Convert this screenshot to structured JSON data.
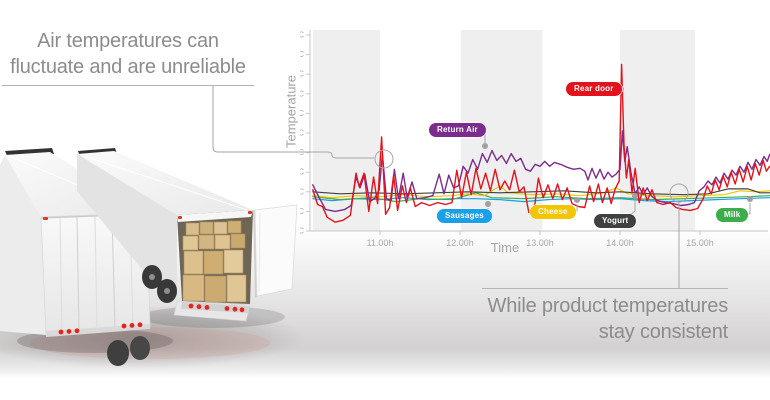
{
  "callouts": {
    "left": {
      "line1": "Air temperatures can",
      "line2": "fluctuate and are unreliable"
    },
    "right": {
      "line1": "While product temperatures",
      "line2": "stay consistent"
    }
  },
  "illustration": {
    "subject": "two white refrigerated semi-trailers seen from the rear, right trailer doors open showing stacked cardboard boxes"
  },
  "chart_data": {
    "type": "line",
    "xlabel": "Time",
    "ylabel": "Temperature",
    "y_unit": "°C",
    "x_unit": "hour of day",
    "xlim": [
      10.16,
      15.87
    ],
    "ylim": [
      0,
      20
    ],
    "x_tick_hours": [
      11,
      12,
      13,
      14,
      15
    ],
    "x_tick_labels": [
      "11.00h",
      "12.00h",
      "13.00h",
      "14.00h",
      "15.00h"
    ],
    "y_tick_labels": [
      "0°C",
      "2°C",
      "4°C",
      "6°C",
      "8°C",
      "10°C",
      "12°C",
      "14°C",
      "16°C",
      "18°C",
      "20°C"
    ],
    "shaded_bands": [
      [
        10.16,
        11.0
      ],
      [
        12.01,
        13.03
      ],
      [
        14.0,
        14.94
      ]
    ],
    "band_color": "#efefef",
    "axis_color": "#c6c6c6",
    "tick_label_color": "#a8a8a8",
    "legend_position": "floating badges beside lines",
    "grid": false,
    "annotations": [
      {
        "shape": "circle",
        "at_hour": 11.05,
        "at_value": 8.5,
        "links_to": "left callout"
      },
      {
        "shape": "circle",
        "at_hour": 14.74,
        "at_value": 3.5,
        "links_to": "right callout"
      }
    ],
    "series": [
      {
        "name": "Sausages",
        "color": "#1a9fe8",
        "width": 1.2,
        "points": [
          [
            10.16,
            3.3
          ],
          [
            10.4,
            3.1
          ],
          [
            10.7,
            3.3
          ],
          [
            11.0,
            3.2
          ],
          [
            11.3,
            3.4
          ],
          [
            11.6,
            3.2
          ],
          [
            11.9,
            3.3
          ],
          [
            12.2,
            3.3
          ],
          [
            12.5,
            3.2
          ],
          [
            12.8,
            3.0
          ],
          [
            13.1,
            3.2
          ],
          [
            13.4,
            3.3
          ],
          [
            13.7,
            3.2
          ],
          [
            14.0,
            3.3
          ],
          [
            14.3,
            3.1
          ],
          [
            14.6,
            3.0
          ],
          [
            14.9,
            3.1
          ],
          [
            15.2,
            3.2
          ],
          [
            15.5,
            3.3
          ],
          [
            15.87,
            3.4
          ]
        ]
      },
      {
        "name": "Milk",
        "color": "#3bad4a",
        "width": 1.2,
        "points": [
          [
            10.16,
            3.5
          ],
          [
            10.5,
            3.2
          ],
          [
            10.9,
            3.4
          ],
          [
            11.2,
            3.0
          ],
          [
            11.5,
            3.3
          ],
          [
            11.9,
            3.2
          ],
          [
            12.2,
            3.9
          ],
          [
            12.4,
            3.4
          ],
          [
            12.8,
            3.3
          ],
          [
            13.2,
            3.5
          ],
          [
            13.6,
            3.3
          ],
          [
            14.0,
            3.4
          ],
          [
            14.4,
            3.2
          ],
          [
            14.8,
            3.3
          ],
          [
            15.2,
            3.4
          ],
          [
            15.6,
            3.5
          ],
          [
            15.87,
            3.6
          ]
        ]
      },
      {
        "name": "Cheese",
        "color": "#f2c500",
        "width": 1.2,
        "points": [
          [
            10.16,
            3.6
          ],
          [
            10.4,
            3.4
          ],
          [
            10.7,
            3.6
          ],
          [
            11.0,
            3.5
          ],
          [
            11.3,
            3.7
          ],
          [
            11.6,
            3.5
          ],
          [
            11.9,
            3.6
          ],
          [
            12.1,
            3.8
          ],
          [
            12.3,
            3.6
          ],
          [
            12.5,
            4.6
          ],
          [
            12.6,
            3.9
          ],
          [
            12.9,
            3.7
          ],
          [
            13.2,
            3.8
          ],
          [
            13.5,
            3.6
          ],
          [
            13.8,
            3.9
          ],
          [
            13.95,
            4.4
          ],
          [
            14.1,
            3.8
          ],
          [
            14.4,
            3.6
          ],
          [
            14.7,
            3.5
          ],
          [
            15.0,
            3.6
          ],
          [
            15.3,
            3.7
          ],
          [
            15.5,
            4.1
          ],
          [
            15.7,
            4.0
          ],
          [
            15.87,
            4.1
          ]
        ]
      },
      {
        "name": "Yogurt",
        "color": "#3f4040",
        "width": 1.2,
        "points": [
          [
            10.16,
            4.0
          ],
          [
            10.5,
            3.8
          ],
          [
            10.9,
            3.9
          ],
          [
            11.3,
            3.8
          ],
          [
            11.7,
            3.9
          ],
          [
            12.1,
            4.0
          ],
          [
            12.5,
            3.9
          ],
          [
            12.9,
            4.0
          ],
          [
            13.3,
            4.1
          ],
          [
            13.7,
            3.9
          ],
          [
            14.0,
            4.0
          ],
          [
            14.4,
            3.8
          ],
          [
            14.8,
            3.7
          ],
          [
            15.1,
            3.8
          ],
          [
            15.35,
            4.3
          ],
          [
            15.6,
            4.3
          ],
          [
            15.75,
            3.9
          ],
          [
            15.87,
            3.9
          ]
        ]
      },
      {
        "name": "Return Air",
        "color": "#7c2c8d",
        "width": 1.4,
        "points": [
          [
            10.16,
            4.7
          ],
          [
            10.24,
            3.4
          ],
          [
            10.32,
            2.2
          ],
          [
            10.44,
            2.0
          ],
          [
            10.56,
            2.2
          ],
          [
            10.64,
            2.6
          ],
          [
            10.7,
            5.5
          ],
          [
            10.75,
            4.4
          ],
          [
            10.81,
            5.8
          ],
          [
            10.87,
            3.0
          ],
          [
            10.93,
            3.3
          ],
          [
            10.99,
            4.2
          ],
          [
            11.03,
            7.8
          ],
          [
            11.08,
            3.3
          ],
          [
            11.14,
            3.1
          ],
          [
            11.18,
            6.3
          ],
          [
            11.23,
            3.3
          ],
          [
            11.29,
            5.9
          ],
          [
            11.34,
            3.4
          ],
          [
            11.4,
            5.0
          ],
          [
            11.46,
            3.3
          ],
          [
            11.56,
            3.4
          ],
          [
            11.66,
            3.6
          ],
          [
            11.74,
            5.8
          ],
          [
            11.8,
            3.8
          ],
          [
            11.86,
            5.7
          ],
          [
            11.92,
            4.4
          ],
          [
            11.98,
            4.6
          ],
          [
            12.04,
            6.6
          ],
          [
            12.1,
            5.9
          ],
          [
            12.16,
            7.3
          ],
          [
            12.22,
            6.3
          ],
          [
            12.28,
            7.9
          ],
          [
            12.34,
            7.0
          ],
          [
            12.4,
            8.2
          ],
          [
            12.46,
            7.2
          ],
          [
            12.52,
            7.7
          ],
          [
            12.58,
            6.9
          ],
          [
            12.64,
            7.9
          ],
          [
            12.7,
            7.1
          ],
          [
            12.76,
            7.4
          ],
          [
            12.82,
            6.3
          ],
          [
            12.88,
            6.1
          ],
          [
            12.94,
            6.8
          ],
          [
            13.0,
            6.6
          ],
          [
            13.06,
            7.1
          ],
          [
            13.12,
            6.6
          ],
          [
            13.18,
            7.0
          ],
          [
            13.26,
            6.8
          ],
          [
            13.34,
            6.5
          ],
          [
            13.42,
            6.3
          ],
          [
            13.5,
            6.4
          ],
          [
            13.56,
            6.1
          ],
          [
            13.6,
            5.2
          ],
          [
            13.65,
            6.4
          ],
          [
            13.7,
            5.4
          ],
          [
            13.75,
            6.3
          ],
          [
            13.8,
            5.3
          ],
          [
            13.85,
            6.0
          ],
          [
            13.9,
            5.5
          ],
          [
            13.95,
            5.8
          ],
          [
            14.0,
            6.3
          ],
          [
            14.03,
            10.2
          ],
          [
            14.06,
            7.1
          ],
          [
            14.09,
            8.6
          ],
          [
            14.14,
            5.8
          ],
          [
            14.19,
            3.8
          ],
          [
            14.24,
            4.5
          ],
          [
            14.29,
            3.7
          ],
          [
            14.34,
            4.4
          ],
          [
            14.4,
            3.5
          ],
          [
            14.47,
            3.1
          ],
          [
            14.56,
            2.9
          ],
          [
            14.66,
            2.8
          ],
          [
            14.76,
            2.6
          ],
          [
            14.86,
            2.7
          ],
          [
            14.93,
            2.9
          ],
          [
            14.99,
            4.1
          ],
          [
            15.05,
            4.5
          ],
          [
            15.1,
            5.1
          ],
          [
            15.15,
            4.7
          ],
          [
            15.2,
            5.5
          ],
          [
            15.25,
            4.9
          ],
          [
            15.3,
            5.9
          ],
          [
            15.35,
            5.3
          ],
          [
            15.4,
            6.2
          ],
          [
            15.45,
            5.7
          ],
          [
            15.5,
            6.6
          ],
          [
            15.55,
            6.0
          ],
          [
            15.6,
            7.0
          ],
          [
            15.65,
            6.3
          ],
          [
            15.7,
            7.3
          ],
          [
            15.75,
            6.7
          ],
          [
            15.8,
            7.6
          ],
          [
            15.84,
            7.1
          ],
          [
            15.87,
            7.8
          ]
        ]
      },
      {
        "name": "Rear door",
        "color": "#e1131c",
        "width": 1.4,
        "points": [
          [
            10.16,
            4.2
          ],
          [
            10.22,
            2.7
          ],
          [
            10.28,
            2.5
          ],
          [
            10.34,
            1.4
          ],
          [
            10.44,
            0.9
          ],
          [
            10.54,
            1.1
          ],
          [
            10.63,
            1.6
          ],
          [
            10.7,
            5.9
          ],
          [
            10.74,
            4.5
          ],
          [
            10.8,
            5.9
          ],
          [
            10.86,
            2.0
          ],
          [
            10.92,
            5.5
          ],
          [
            10.97,
            2.8
          ],
          [
            11.02,
            9.6
          ],
          [
            11.07,
            1.7
          ],
          [
            11.12,
            2.4
          ],
          [
            11.17,
            5.7
          ],
          [
            11.22,
            2.1
          ],
          [
            11.28,
            4.6
          ],
          [
            11.33,
            2.9
          ],
          [
            11.38,
            4.4
          ],
          [
            11.44,
            2.5
          ],
          [
            11.52,
            2.9
          ],
          [
            11.62,
            2.6
          ],
          [
            11.72,
            2.9
          ],
          [
            11.82,
            2.7
          ],
          [
            11.9,
            2.9
          ],
          [
            11.96,
            6.2
          ],
          [
            12.02,
            3.4
          ],
          [
            12.08,
            6.0
          ],
          [
            12.14,
            3.7
          ],
          [
            12.2,
            6.4
          ],
          [
            12.26,
            4.3
          ],
          [
            12.32,
            5.9
          ],
          [
            12.38,
            4.1
          ],
          [
            12.44,
            6.3
          ],
          [
            12.5,
            4.2
          ],
          [
            12.56,
            5.1
          ],
          [
            12.62,
            4.2
          ],
          [
            12.68,
            6.2
          ],
          [
            12.74,
            4.0
          ],
          [
            12.8,
            4.5
          ],
          [
            12.86,
            1.9
          ],
          [
            12.92,
            1.8
          ],
          [
            12.98,
            5.4
          ],
          [
            13.04,
            3.4
          ],
          [
            13.1,
            4.7
          ],
          [
            13.16,
            3.3
          ],
          [
            13.22,
            4.8
          ],
          [
            13.28,
            3.2
          ],
          [
            13.34,
            4.4
          ],
          [
            13.4,
            2.8
          ],
          [
            13.48,
            2.5
          ],
          [
            13.56,
            2.4
          ],
          [
            13.62,
            4.6
          ],
          [
            13.67,
            3.0
          ],
          [
            13.73,
            4.8
          ],
          [
            13.78,
            2.9
          ],
          [
            13.84,
            4.4
          ],
          [
            13.89,
            2.8
          ],
          [
            13.94,
            4.3
          ],
          [
            13.99,
            5.1
          ],
          [
            14.02,
            17.0
          ],
          [
            14.05,
            8.8
          ],
          [
            14.08,
            5.4
          ],
          [
            14.11,
            7.3
          ],
          [
            14.15,
            3.9
          ],
          [
            14.19,
            6.4
          ],
          [
            14.24,
            2.9
          ],
          [
            14.29,
            4.4
          ],
          [
            14.34,
            3.1
          ],
          [
            14.4,
            4.2
          ],
          [
            14.46,
            2.9
          ],
          [
            14.54,
            2.7
          ],
          [
            14.63,
            2.9
          ],
          [
            14.7,
            2.4
          ],
          [
            14.78,
            2.2
          ],
          [
            14.88,
            2.1
          ],
          [
            14.97,
            2.3
          ],
          [
            15.04,
            3.3
          ],
          [
            15.09,
            4.6
          ],
          [
            15.14,
            3.8
          ],
          [
            15.19,
            5.2
          ],
          [
            15.24,
            4.2
          ],
          [
            15.29,
            5.6
          ],
          [
            15.34,
            4.5
          ],
          [
            15.39,
            6.0
          ],
          [
            15.44,
            4.8
          ],
          [
            15.49,
            6.3
          ],
          [
            15.54,
            5.0
          ],
          [
            15.59,
            6.6
          ],
          [
            15.64,
            5.2
          ],
          [
            15.69,
            6.9
          ],
          [
            15.74,
            5.7
          ],
          [
            15.79,
            7.2
          ],
          [
            15.83,
            6.1
          ],
          [
            15.87,
            6.6
          ]
        ]
      }
    ]
  }
}
